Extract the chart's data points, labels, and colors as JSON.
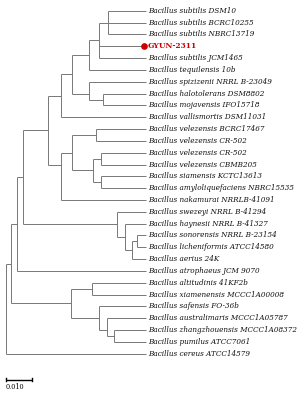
{
  "background_color": "#ffffff",
  "scale_bar_value": "0.010",
  "line_color": "#777777",
  "font_size": 5.2,
  "lw": 0.7,
  "taxon_labels": [
    [
      "Bacillus subtilis",
      " DSM10"
    ],
    [
      "Bacillus subtilis",
      " BCRC10255"
    ],
    [
      "Bacillus subtilis",
      " NBRC13719"
    ],
    [
      "GYUN-2311",
      ""
    ],
    [
      "Bacillus subtilis",
      " JCM1465"
    ],
    [
      "Bacillus tequilensis",
      " 10b"
    ],
    [
      "Bacillus spizizenii",
      " NRRL B-23049"
    ],
    [
      "Bacillus halotolerans",
      " DSM8802"
    ],
    [
      "Bacillus mojavensis",
      " IFO15718"
    ],
    [
      "Bacillus vallismortis",
      " DSM11031"
    ],
    [
      "Bacillus velezensis",
      " BCRC17467"
    ],
    [
      "Bacillus velezensis",
      " CR-502"
    ],
    [
      "Bacillus velezensis",
      " CR-502"
    ],
    [
      "Bacillus velezensis",
      " CBMB205"
    ],
    [
      "Bacillus siamensis",
      " KCTC13613"
    ],
    [
      "Bacillus amyloliquefaciens",
      " NBRC15535"
    ],
    [
      "Bacillus nakamurai",
      " NRRLB-41091"
    ],
    [
      "Bacillus swezeyi",
      " NRRL B-41294"
    ],
    [
      "Bacillus haynesii",
      " NRRL B-41327"
    ],
    [
      "Bacillus sonorensis",
      " NRRL B-23154"
    ],
    [
      "Bacillus licheniformis",
      " ATCC14580"
    ],
    [
      "Bacillus aerius",
      " 24K"
    ],
    [
      "Bacillus atrophaeus",
      " JCM 9070"
    ],
    [
      "Bacillus altitudinis",
      " 41KF2b"
    ],
    [
      "Bacillus xiamenensis",
      " MCCC1A00008"
    ],
    [
      "Bacillus safensis",
      " FO-36b"
    ],
    [
      "Bacillus australimaris",
      " MCCC1A05787"
    ],
    [
      "Bacillus zhangzhouensis",
      " MCCC1A08372"
    ],
    [
      "Bacillus pumilus",
      " ATCC7061"
    ],
    [
      "Bacillus cereus",
      " ATCC14579"
    ]
  ]
}
